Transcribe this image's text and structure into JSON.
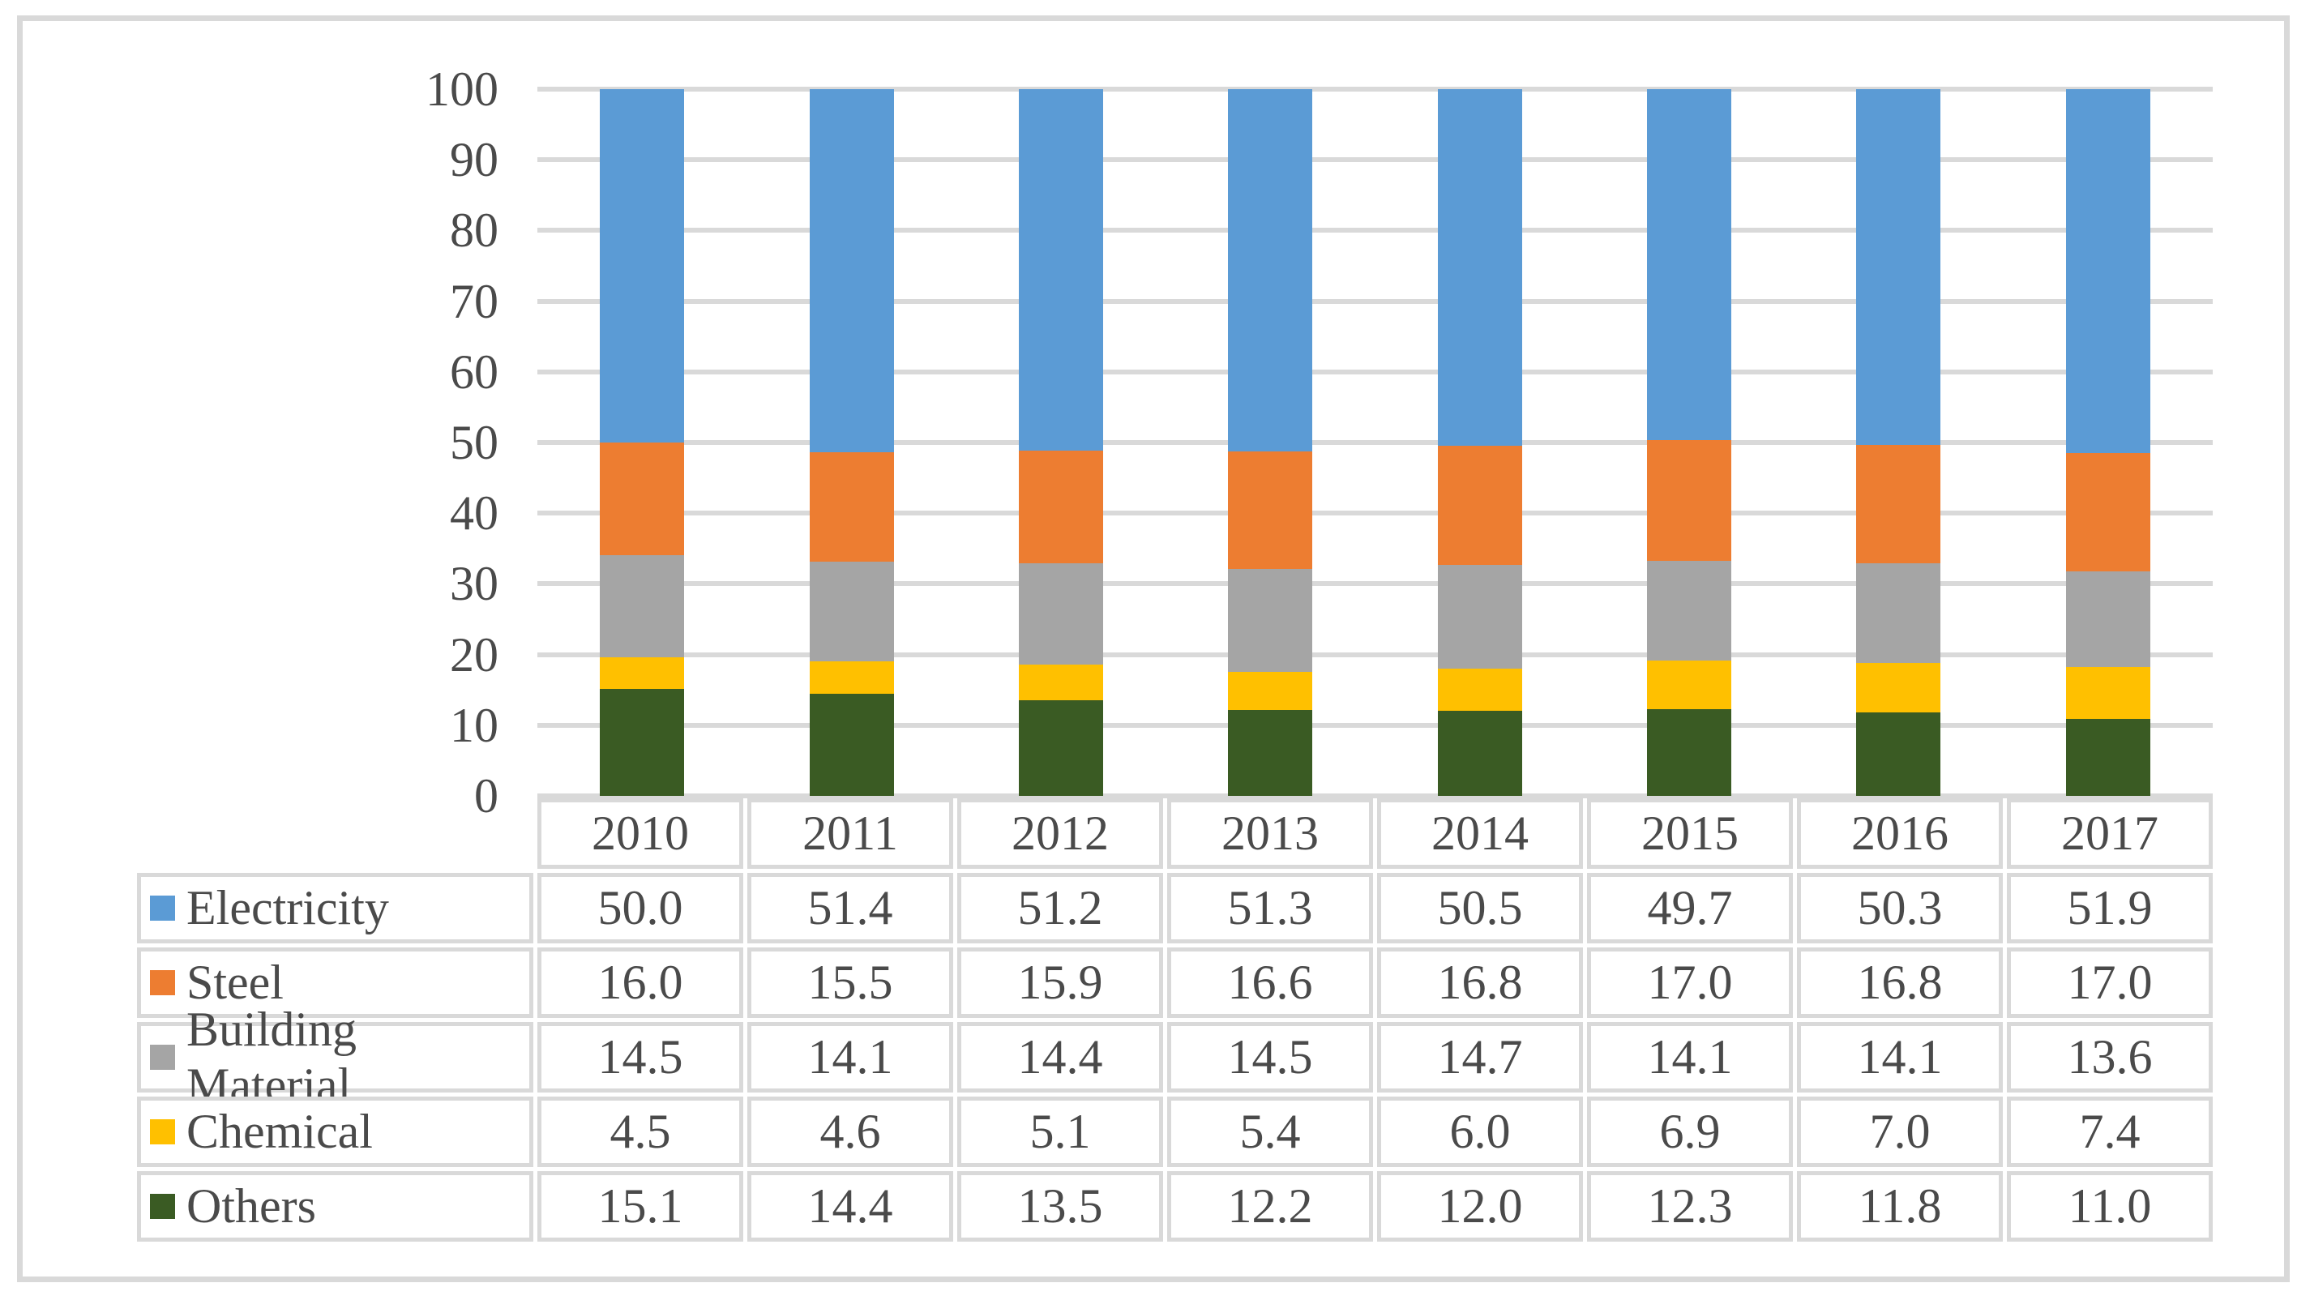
{
  "chart_data": {
    "type": "bar",
    "stacked": true,
    "title": "",
    "xlabel": "",
    "ylabel": "",
    "categories": [
      "2010",
      "2011",
      "2012",
      "2013",
      "2014",
      "2015",
      "2016",
      "2017"
    ],
    "series": [
      {
        "name": "Electricity",
        "color": "#5B9BD5",
        "values": [
          50.0,
          51.4,
          51.2,
          51.3,
          50.5,
          49.7,
          50.3,
          51.9
        ]
      },
      {
        "name": "Steel",
        "color": "#ED7D31",
        "values": [
          16.0,
          15.5,
          15.9,
          16.6,
          16.8,
          17.0,
          16.8,
          17.0
        ]
      },
      {
        "name": "Building Material",
        "color": "#A5A5A5",
        "values": [
          14.5,
          14.1,
          14.4,
          14.5,
          14.7,
          14.1,
          14.1,
          13.6
        ]
      },
      {
        "name": "Chemical",
        "color": "#FFC000",
        "values": [
          4.5,
          4.6,
          5.1,
          5.4,
          6.0,
          6.9,
          7.0,
          7.4
        ]
      },
      {
        "name": "Others",
        "color": "#3A5B23",
        "values": [
          15.1,
          14.4,
          13.5,
          12.2,
          12.0,
          12.3,
          11.8,
          11.0
        ]
      }
    ],
    "stack_order_bottom_to_top": [
      "Others",
      "Chemical",
      "Building Material",
      "Steel",
      "Electricity"
    ],
    "ylim": [
      0,
      100
    ],
    "ytick_step": 10,
    "yticks": [
      0,
      10,
      20,
      30,
      40,
      50,
      60,
      70,
      80,
      90,
      100
    ],
    "grid": true,
    "value_decimals": 1,
    "legend_position": "data-table-left-column",
    "colors": {
      "gridline": "#d9d9d9",
      "table_border": "#d9d9d9",
      "text": "#4a4a4a",
      "background": "#ffffff"
    }
  }
}
